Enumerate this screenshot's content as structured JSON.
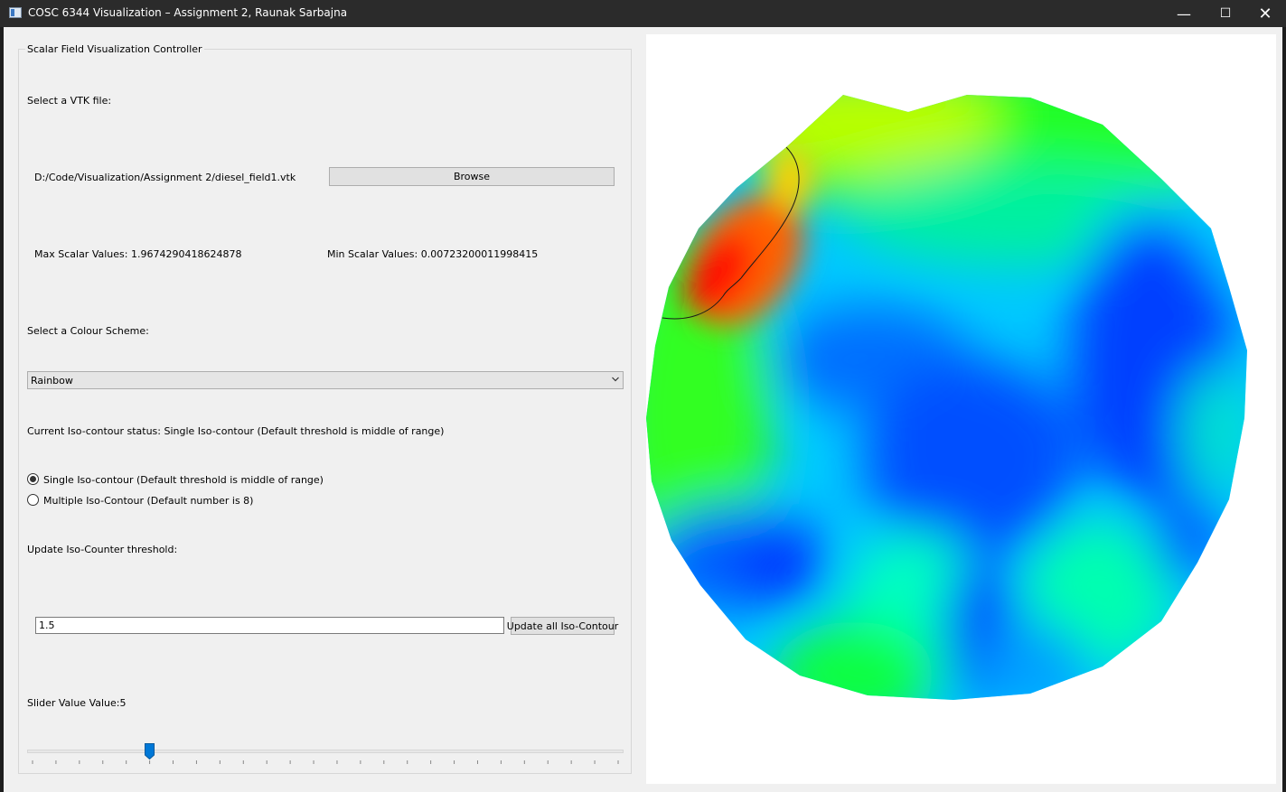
{
  "window": {
    "title": "COSC 6344 Visualization – Assignment 2, Raunak Sarbajna",
    "min_glyph": "—",
    "max_glyph": "☐",
    "close_glyph": "✕"
  },
  "controller": {
    "group_title": "Scalar Field Visualization Controller",
    "select_file_label": "Select a VTK file:",
    "file_path": "D:/Code/Visualization/Assignment 2/diesel_field1.vtk",
    "browse_label": "Browse",
    "max_scalar": "Max Scalar Values: 1.9674290418624878",
    "min_scalar": "Min Scalar Values: 0.00723200011998415",
    "colour_scheme_label": "Select a Colour Scheme:",
    "colour_scheme_value": "Rainbow",
    "iso_status": "Current Iso-contour status: Single Iso-contour (Default threshold is middle of range)",
    "radio_single": "Single Iso-contour (Default threshold is middle of range)",
    "radio_multiple": "Multiple Iso-Contour (Default number is 8)",
    "radio_selected": "single",
    "threshold_label": "Update Iso-Counter threshold:",
    "threshold_value": "1.5",
    "update_button": "Update all Iso-Contour",
    "slider_label": "Slider Value Value:5",
    "slider_value": 5,
    "slider_min": 0,
    "slider_max": 25
  },
  "colors": {
    "slider_handle": "#0078d7",
    "title_bar": "#2b2b2b"
  }
}
